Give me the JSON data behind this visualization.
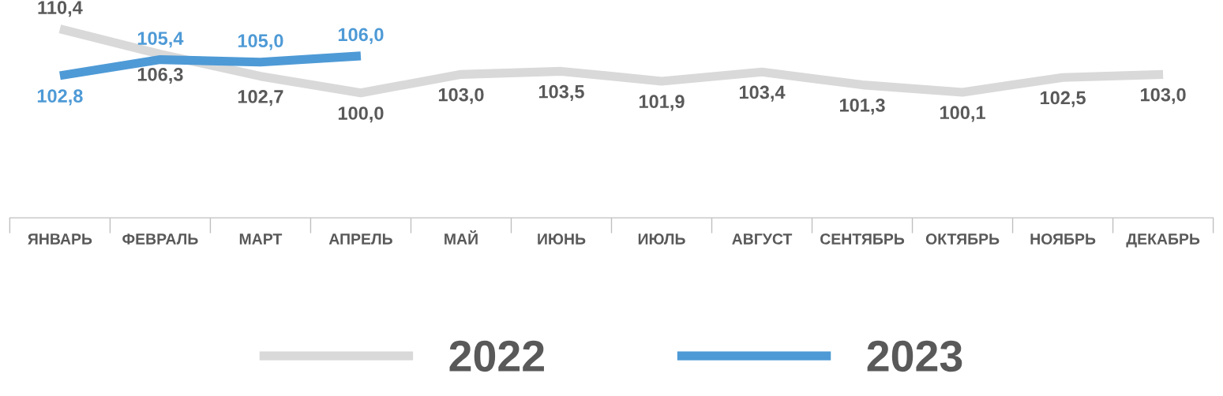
{
  "chart_data": {
    "type": "line",
    "categories": [
      "ЯНВАРЬ",
      "ФЕВРАЛЬ",
      "МАРТ",
      "АПРЕЛЬ",
      "МАЙ",
      "ИЮНЬ",
      "ИЮЛЬ",
      "АВГУСТ",
      "СЕНТЯБРЬ",
      "ОКТЯБРЬ",
      "НОЯБРЬ",
      "ДЕКАБРЬ"
    ],
    "series": [
      {
        "name": "2022",
        "color": "#d9d9d9",
        "values": [
          110.4,
          106.3,
          102.7,
          100.0,
          103.0,
          103.5,
          101.9,
          103.4,
          101.3,
          100.1,
          102.5,
          103.0
        ],
        "value_labels": [
          "110,4",
          "106,3",
          "102,7",
          "100,0",
          "103,0",
          "103,5",
          "101,9",
          "103,4",
          "101,3",
          "100,1",
          "102,5",
          "103,0"
        ]
      },
      {
        "name": "2023",
        "color": "#4e9ad6",
        "values": [
          102.8,
          105.4,
          105.0,
          106.0,
          null,
          null,
          null,
          null,
          null,
          null,
          null,
          null
        ],
        "value_labels": [
          "102,8",
          "105,4",
          "105,0",
          "106,0",
          null,
          null,
          null,
          null,
          null,
          null,
          null,
          null
        ]
      }
    ],
    "legend": "bottom",
    "marker": "none",
    "line_style": "solid"
  }
}
